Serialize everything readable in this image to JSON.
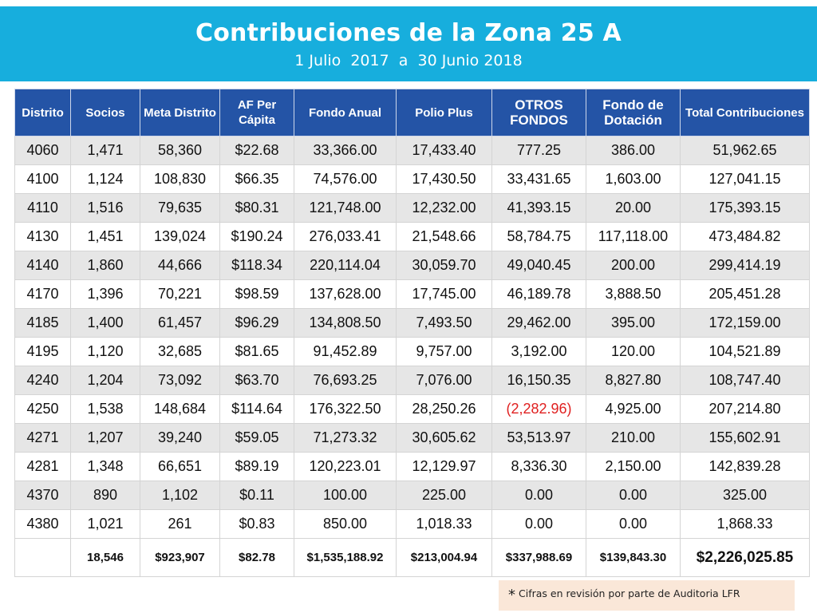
{
  "header": {
    "title": "Contribuciones de la Zona 25 A",
    "subtitle": "1 Julio  2017  a  30 Junio 2018"
  },
  "table": {
    "columns": [
      "Distrito",
      "Socios",
      "Meta Distrito",
      "AF Per Cápita",
      "Fondo Anual",
      "Polio Plus",
      "OTROS FONDOS",
      "Fondo de Dotación",
      "Total Contribuciones"
    ],
    "rows": [
      [
        "4060",
        "1,471",
        "58,360",
        "$22.68",
        "33,366.00",
        "17,433.40",
        "777.25",
        "386.00",
        "51,962.65"
      ],
      [
        "4100",
        "1,124",
        "108,830",
        "$66.35",
        "74,576.00",
        "17,430.50",
        "33,431.65",
        "1,603.00",
        "127,041.15"
      ],
      [
        "4110",
        "1,516",
        "79,635",
        "$80.31",
        "121,748.00",
        "12,232.00",
        "41,393.15",
        "20.00",
        "175,393.15"
      ],
      [
        "4130",
        "1,451",
        "139,024",
        "$190.24",
        "276,033.41",
        "21,548.66",
        "58,784.75",
        "117,118.00",
        "473,484.82"
      ],
      [
        "4140",
        "1,860",
        "44,666",
        "$118.34",
        "220,114.04",
        "30,059.70",
        "49,040.45",
        "200.00",
        "299,414.19"
      ],
      [
        "4170",
        "1,396",
        "70,221",
        "$98.59",
        "137,628.00",
        "17,745.00",
        "46,189.78",
        "3,888.50",
        "205,451.28"
      ],
      [
        "4185",
        "1,400",
        "61,457",
        "$96.29",
        "134,808.50",
        "7,493.50",
        "29,462.00",
        "395.00",
        "172,159.00"
      ],
      [
        "4195",
        "1,120",
        "32,685",
        "$81.65",
        "91,452.89",
        "9,757.00",
        "3,192.00",
        "120.00",
        "104,521.89"
      ],
      [
        "4240",
        "1,204",
        "73,092",
        "$63.70",
        "76,693.25",
        "7,076.00",
        "16,150.35",
        "8,827.80",
        "108,747.40"
      ],
      [
        "4250",
        "1,538",
        "148,684",
        "$114.64",
        "176,322.50",
        "28,250.26",
        "(2,282.96)",
        "4,925.00",
        "207,214.80"
      ],
      [
        "4271",
        "1,207",
        "39,240",
        "$59.05",
        "71,273.32",
        "30,605.62",
        "53,513.97",
        "210.00",
        "155,602.91"
      ],
      [
        "4281",
        "1,348",
        "66,651",
        "$89.19",
        "120,223.01",
        "12,129.97",
        "8,336.30",
        "2,150.00",
        "142,839.28"
      ],
      [
        "4370",
        "890",
        "1,102",
        "$0.11",
        "100.00",
        "225.00",
        "0.00",
        "0.00",
        "325.00"
      ],
      [
        "4380",
        "1,021",
        "261",
        "$0.83",
        "850.00",
        "1,018.33",
        "0.00",
        "0.00",
        "1,868.33"
      ]
    ],
    "totals": [
      "",
      "18,546",
      "$923,907",
      "$82.78",
      "$1,535,188.92",
      "$213,004.94",
      "$337,988.69",
      "$139,843.30",
      "$2,226,025.85"
    ]
  },
  "colors": {
    "banner": "#17aedd",
    "header_bg": "#2454a6",
    "negative": "#e02020",
    "note_bg": "#fae7d8"
  },
  "footnote": {
    "star": "*",
    "text": "Cifras en revisión por parte de Auditoria  LFR"
  }
}
